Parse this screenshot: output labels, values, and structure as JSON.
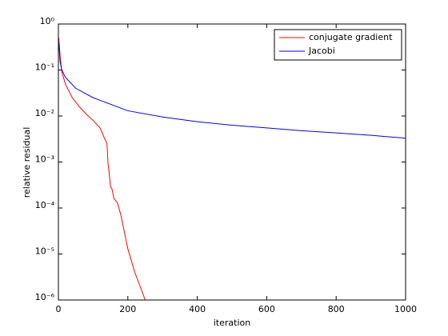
{
  "chart_data": {
    "type": "line",
    "x_label": "iteration",
    "y_label": "relative residual",
    "xlim": [
      0,
      1000
    ],
    "xticks": [
      0,
      200,
      400,
      600,
      800,
      1000
    ],
    "ylim": [
      1e-06,
      1
    ],
    "y_scale": "log",
    "yticks": [
      {
        "value": 1e-06,
        "label": "10⁻⁶"
      },
      {
        "value": 1e-05,
        "label": "10⁻⁵"
      },
      {
        "value": 0.0001,
        "label": "10⁻⁴"
      },
      {
        "value": 0.001,
        "label": "10⁻³"
      },
      {
        "value": 0.01,
        "label": "10⁻²"
      },
      {
        "value": 0.1,
        "label": "10⁻¹"
      },
      {
        "value": 1,
        "label": "10⁰"
      }
    ],
    "legend_position": "upper right",
    "series": [
      {
        "name": "conjugate gradient",
        "color": "#ff0000",
        "x": [
          1,
          5,
          10,
          20,
          40,
          60,
          80,
          100,
          120,
          135,
          140,
          143,
          145,
          150,
          155,
          160,
          170,
          180,
          190,
          200,
          220,
          240,
          250
        ],
        "values": [
          0.5,
          0.2,
          0.09,
          0.05,
          0.025,
          0.016,
          0.011,
          0.008,
          0.0055,
          0.003,
          0.0025,
          0.0009,
          0.0007,
          0.0003,
          0.00025,
          0.00016,
          0.00013,
          7e-05,
          3e-05,
          1.3e-05,
          4e-06,
          1.6e-06,
          1e-06
        ]
      },
      {
        "name": "Jacobi",
        "color": "#0000ff",
        "x": [
          1,
          5,
          10,
          20,
          50,
          100,
          200,
          300,
          400,
          500,
          600,
          700,
          800,
          900,
          1000
        ],
        "values": [
          0.4,
          0.15,
          0.1,
          0.07,
          0.04,
          0.025,
          0.013,
          0.0095,
          0.0075,
          0.0063,
          0.0055,
          0.0048,
          0.0043,
          0.0038,
          0.0033
        ]
      }
    ]
  }
}
